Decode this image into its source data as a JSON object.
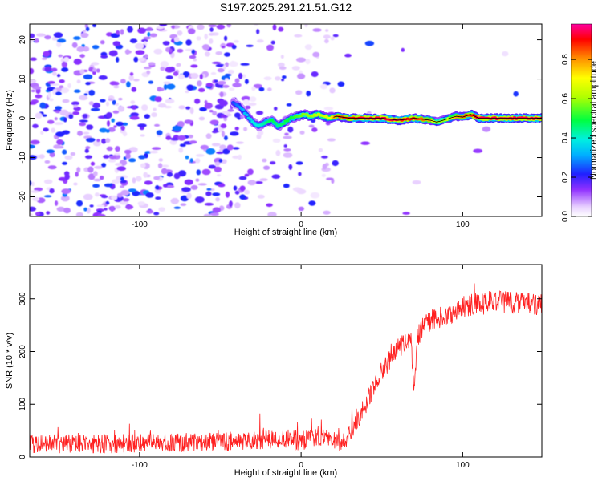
{
  "title": "S197.2025.291.21.51.G12",
  "chart_data": [
    {
      "type": "heatmap",
      "title": "S197.2025.291.21.51.G12",
      "xlabel": "Height of straight line (km)",
      "ylabel": "Frequency (Hz)",
      "xlim": [
        -168,
        149
      ],
      "ylim": [
        -25,
        24
      ],
      "xticks": [
        -100,
        0,
        100
      ],
      "yticks": [
        -20,
        -10,
        0,
        10,
        20
      ],
      "colorbar": {
        "label": "Normalized spectral amplitude",
        "range": [
          0,
          0.98
        ],
        "ticks": [
          0.0,
          0.2,
          0.4,
          0.6,
          0.8
        ],
        "tick_labels": [
          "0.0",
          "0.2",
          "0.4",
          "0.6",
          "0.8"
        ]
      },
      "signal_track": {
        "description": "frequency of the strong narrow-band signal vs height",
        "x": [
          -42,
          -38,
          -34,
          -30,
          -26,
          -22,
          -18,
          -14,
          -10,
          -6,
          -2,
          2,
          6,
          10,
          14,
          18,
          22,
          30,
          40,
          50,
          60,
          70,
          80,
          84,
          88,
          92,
          96,
          100,
          105,
          110,
          120,
          130,
          140,
          149
        ],
        "frequency": [
          4,
          3,
          1,
          -1,
          -2,
          -1,
          -0.5,
          -2,
          -1,
          0,
          0.5,
          1,
          0.5,
          1,
          0.5,
          0,
          0.5,
          0,
          0,
          0,
          -0.5,
          0,
          -0.5,
          -1,
          -0.5,
          0,
          0.5,
          0.3,
          1,
          0,
          0,
          0,
          0,
          0
        ],
        "amplitude": [
          0.25,
          0.3,
          0.35,
          0.4,
          0.4,
          0.45,
          0.5,
          0.45,
          0.5,
          0.5,
          0.55,
          0.6,
          0.6,
          0.65,
          0.65,
          0.7,
          0.85,
          0.9,
          0.95,
          0.95,
          0.95,
          0.9,
          0.8,
          0.6,
          0.6,
          0.7,
          0.8,
          0.85,
          0.9,
          0.95,
          0.95,
          0.95,
          0.95,
          0.95
        ]
      },
      "background_noise": "scattered low-amplitude (0.0-0.3) blobs across all frequencies, dense for heights below about 20 km and nearly absent above"
    },
    {
      "type": "line",
      "xlabel": "Height of straight line (km)",
      "ylabel": "SNR (10 * v/v)",
      "xlim": [
        -168,
        149
      ],
      "ylim": [
        0,
        365
      ],
      "xticks": [
        -100,
        0,
        100
      ],
      "yticks": [
        0,
        100,
        200,
        300
      ],
      "series": [
        {
          "name": "SNR",
          "color": "#ff2020",
          "x": [
            -168,
            -140,
            -120,
            -100,
            -80,
            -60,
            -40,
            -20,
            -10,
            0,
            10,
            20,
            25,
            30,
            35,
            40,
            45,
            50,
            55,
            60,
            65,
            68,
            69,
            70,
            71,
            72,
            75,
            80,
            90,
            100,
            110,
            120,
            130,
            140,
            149
          ],
          "values": [
            25,
            25,
            25,
            26,
            28,
            28,
            30,
            33,
            35,
            30,
            40,
            35,
            25,
            40,
            70,
            100,
            130,
            160,
            185,
            205,
            225,
            230,
            160,
            120,
            170,
            230,
            245,
            260,
            270,
            285,
            290,
            295,
            295,
            290,
            285
          ],
          "noise_amplitude": 18
        }
      ]
    }
  ]
}
